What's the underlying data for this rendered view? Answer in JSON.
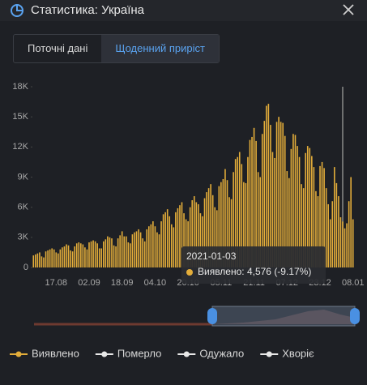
{
  "header": {
    "title": "Статистика: Україна"
  },
  "tabs": [
    "Поточні дані",
    "Щоденний приріст"
  ],
  "chart_data": {
    "type": "bar",
    "categories": [
      null,
      null,
      null,
      null,
      null,
      null,
      null,
      null,
      null,
      null,
      null,
      "17.08",
      null,
      null,
      null,
      null,
      null,
      null,
      null,
      null,
      null,
      null,
      null,
      null,
      null,
      null,
      null,
      "02.09",
      null,
      null,
      null,
      null,
      null,
      null,
      null,
      null,
      null,
      null,
      null,
      null,
      null,
      null,
      null,
      "18.09",
      null,
      null,
      null,
      null,
      null,
      null,
      null,
      null,
      null,
      null,
      null,
      null,
      null,
      null,
      null,
      "04.10",
      null,
      null,
      null,
      null,
      null,
      null,
      null,
      null,
      null,
      null,
      null,
      null,
      null,
      null,
      null,
      "20.10",
      null,
      null,
      null,
      null,
      null,
      null,
      null,
      null,
      null,
      null,
      null,
      null,
      null,
      null,
      null,
      "05.11",
      null,
      null,
      null,
      null,
      null,
      null,
      null,
      null,
      null,
      null,
      null,
      null,
      null,
      null,
      null,
      "21.11",
      null,
      null,
      null,
      null,
      null,
      null,
      null,
      null,
      null,
      null,
      null,
      null,
      null,
      null,
      null,
      "07.12",
      null,
      null,
      null,
      null,
      null,
      null,
      null,
      null,
      null,
      null,
      null,
      null,
      null,
      null,
      null,
      "23.12",
      null,
      null,
      null,
      null,
      null,
      null,
      null,
      null,
      null,
      null,
      null,
      null,
      null,
      null,
      null,
      "08.01"
    ],
    "series": [
      {
        "name": "Виявлено",
        "color": "#e3ad3a",
        "values": [
          1200,
          1300,
          1400,
          1500,
          1100,
          1000,
          1600,
          1700,
          1800,
          1900,
          1800,
          1500,
          1400,
          1800,
          2000,
          2100,
          2300,
          2200,
          1700,
          1600,
          2100,
          2400,
          2500,
          2400,
          2300,
          2000,
          1800,
          2500,
          2600,
          2700,
          2600,
          2400,
          1900,
          1900,
          2600,
          2800,
          3100,
          3000,
          2900,
          2200,
          2100,
          2900,
          3200,
          3600,
          3100,
          3100,
          2500,
          2400,
          3300,
          3500,
          3600,
          3800,
          3500,
          2900,
          2600,
          3800,
          4100,
          4300,
          4600,
          4100,
          3500,
          3300,
          4600,
          5300,
          5500,
          5800,
          5100,
          4300,
          4000,
          5500,
          5900,
          6200,
          6500,
          5400,
          4800,
          4600,
          6000,
          6700,
          7100,
          6500,
          6300,
          5400,
          5100,
          6900,
          7500,
          7900,
          8300,
          7200,
          6000,
          5700,
          8100,
          8500,
          8800,
          9800,
          8700,
          7000,
          6800,
          9500,
          10800,
          11000,
          11500,
          10300,
          8500,
          8400,
          11000,
          12700,
          13000,
          13900,
          12600,
          9500,
          9000,
          13300,
          14600,
          16100,
          16300,
          14200,
          11500,
          10900,
          14500,
          15000,
          14500,
          14400,
          13100,
          9600,
          8900,
          11800,
          13300,
          13200,
          12100,
          11000,
          8300,
          7900,
          11400,
          12100,
          11900,
          11100,
          10000,
          7600,
          7100,
          10100,
          10500,
          9900,
          7900,
          6300,
          4800,
          6600,
          10000,
          8400,
          7100,
          5000,
          4576,
          3900,
          4400,
          6600,
          9000,
          4800
        ]
      },
      {
        "name": "Померло",
        "color": "#e8e8e8"
      },
      {
        "name": "Одужало",
        "color": "#e8e8e8"
      },
      {
        "name": "Хворіє",
        "color": "#e8e8e8"
      }
    ],
    "ylim": [
      0,
      18000
    ],
    "yticks": [
      0,
      {
        "value": 3000,
        "label": "3K"
      },
      {
        "value": 6000,
        "label": "6K"
      },
      {
        "value": 9000,
        "label": "9K"
      },
      {
        "value": 12000,
        "label": "12K"
      },
      {
        "value": 15000,
        "label": "15K"
      },
      {
        "value": 18000,
        "label": "18K"
      }
    ],
    "tooltip": {
      "title": "2021-01-03",
      "label": "Виявлено: 4,576 (-9.17%)"
    }
  }
}
